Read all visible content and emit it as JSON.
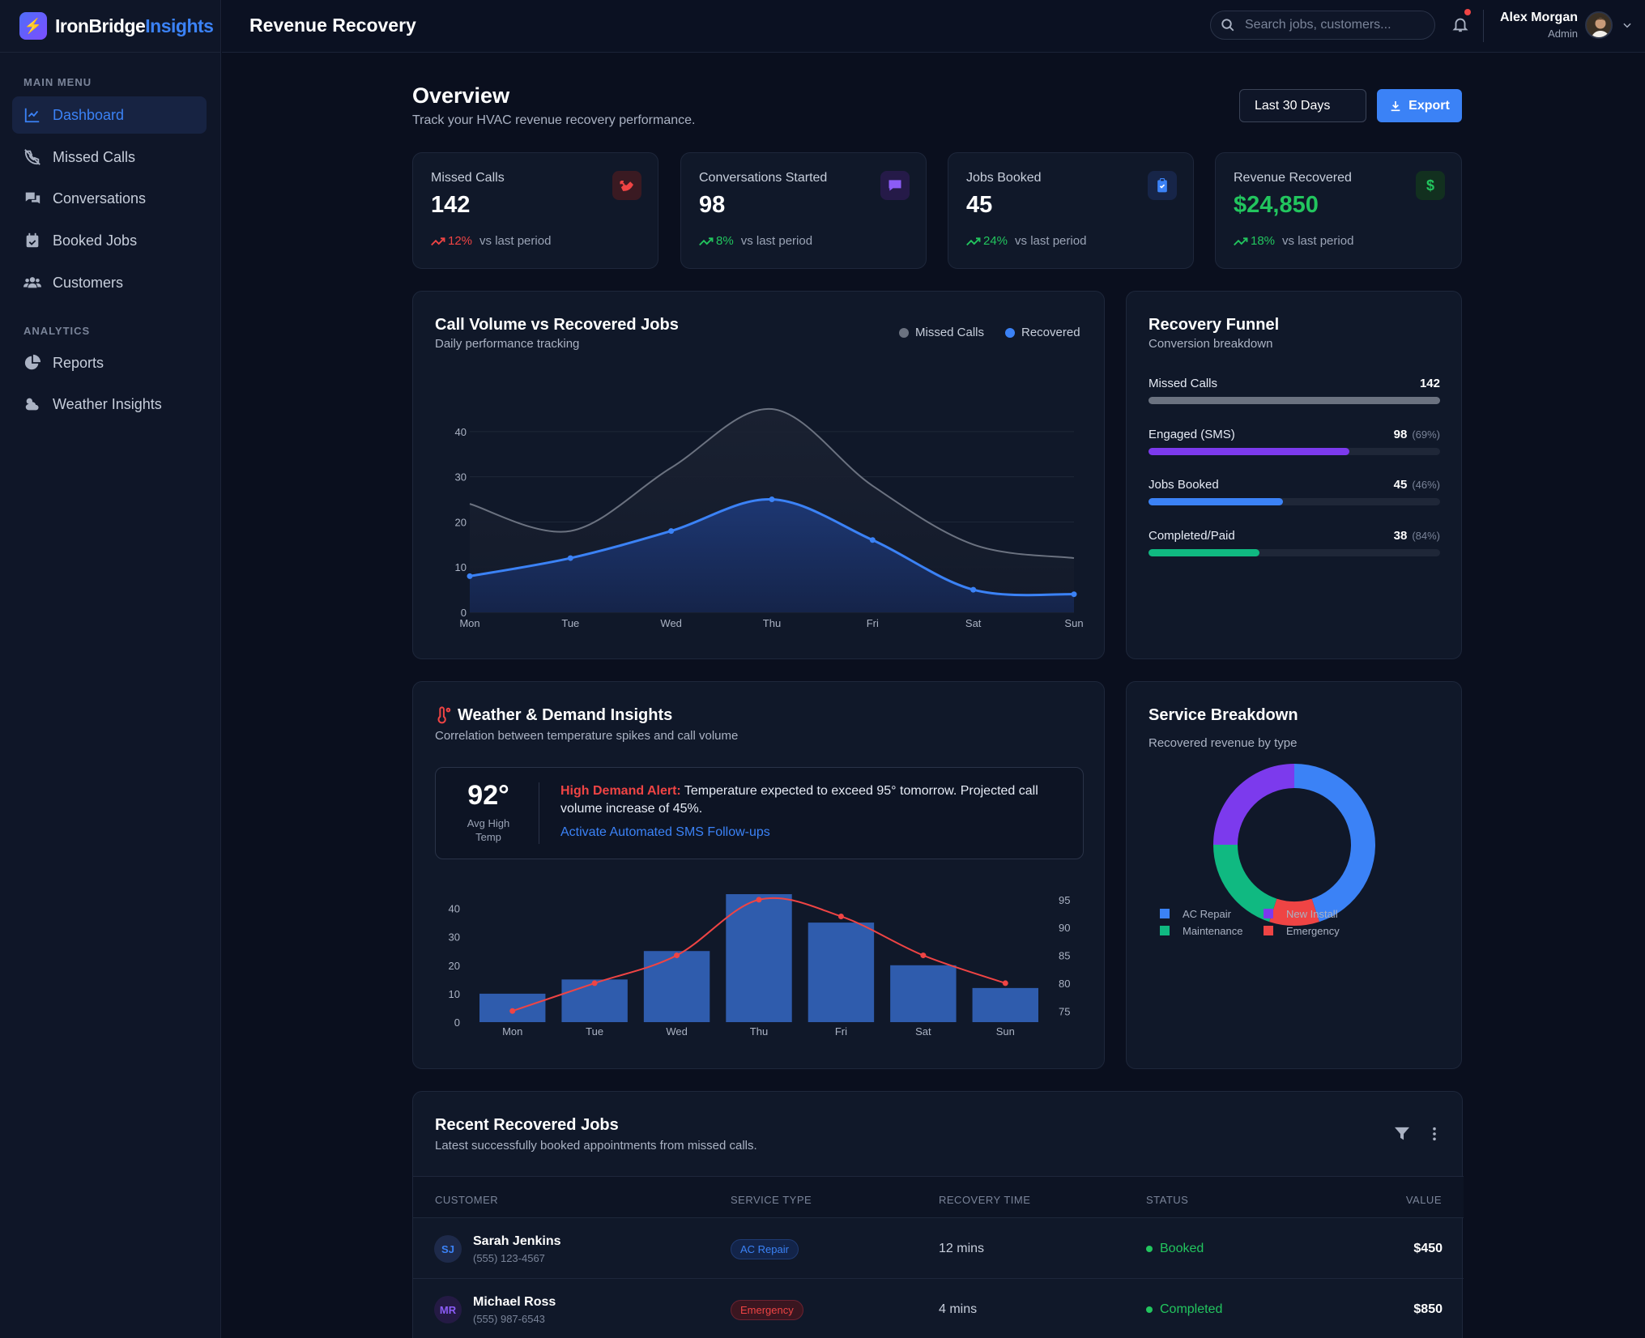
{
  "brand": {
    "name_main": "IronBridge",
    "name_accent": "Insights"
  },
  "topbar": {
    "title": "Revenue Recovery",
    "search_placeholder": "Search jobs, customers...",
    "user_name": "Alex Morgan",
    "user_role": "Admin"
  },
  "sidebar": {
    "main_menu_label": "MAIN MENU",
    "analytics_label": "ANALYTICS",
    "items": [
      {
        "label": "Dashboard",
        "icon": "chart-line-icon",
        "active": true
      },
      {
        "label": "Missed Calls",
        "icon": "phone-slash-icon"
      },
      {
        "label": "Conversations",
        "icon": "comments-icon"
      },
      {
        "label": "Booked Jobs",
        "icon": "calendar-check-icon"
      },
      {
        "label": "Customers",
        "icon": "users-icon"
      },
      {
        "label": "Reports",
        "icon": "pie-chart-icon"
      },
      {
        "label": "Weather Insights",
        "icon": "cloud-sun-icon"
      }
    ]
  },
  "overview": {
    "title": "Overview",
    "subtitle": "Track your HVAC revenue recovery performance.",
    "range_label": "Last 30 Days",
    "export_label": "Export"
  },
  "kpis": [
    {
      "label": "Missed Calls",
      "value": "142",
      "trend": "12%",
      "trend_suffix": "vs last period",
      "trend_color": "#ef4444",
      "icon": "phone-missed-icon",
      "icon_color": "#ef4444",
      "value_color": "#ffffff"
    },
    {
      "label": "Conversations Started",
      "value": "98",
      "trend": "8%",
      "trend_suffix": "vs last period",
      "trend_color": "#22c55e",
      "icon": "message-icon",
      "icon_color": "#8b5cf6",
      "value_color": "#ffffff"
    },
    {
      "label": "Jobs Booked",
      "value": "45",
      "trend": "24%",
      "trend_suffix": "vs last period",
      "trend_color": "#22c55e",
      "icon": "clipboard-check-icon",
      "icon_color": "#3b82f6",
      "value_color": "#ffffff"
    },
    {
      "label": "Revenue Recovered",
      "value": "$24,850",
      "trend": "18%",
      "trend_suffix": "vs last period",
      "trend_color": "#22c55e",
      "icon": "dollar-icon",
      "icon_color": "#22c55e",
      "value_color": "#22c55e"
    }
  ],
  "call_volume": {
    "title": "Call Volume vs Recovered Jobs",
    "subtitle": "Daily performance tracking",
    "legend_missed": "Missed Calls",
    "legend_recovered": "Recovered"
  },
  "funnel": {
    "title": "Recovery Funnel",
    "subtitle": "Conversion breakdown",
    "rows": [
      {
        "label": "Missed Calls",
        "value": "142",
        "pct": "",
        "fill": 1.0,
        "color": "#6b7280"
      },
      {
        "label": "Engaged (SMS)",
        "value": "98",
        "pct": "(69%)",
        "fill": 0.69,
        "color": "#7c3aed"
      },
      {
        "label": "Jobs Booked",
        "value": "45",
        "pct": "(46%)",
        "fill": 0.46,
        "color": "#3b82f6"
      },
      {
        "label": "Completed/Paid",
        "value": "38",
        "pct": "(84%)",
        "fill": 0.38,
        "color": "#10b981"
      }
    ]
  },
  "weather": {
    "title": "Weather & Demand Insights",
    "subtitle": "Correlation between temperature spikes and call volume",
    "temp": "92°",
    "temp_label": "Avg High Temp",
    "alert_title": "High Demand Alert:",
    "alert_body": "Temperature expected to exceed 95° tomorrow. Projected call volume increase of 45%.",
    "alert_action": "Activate Automated SMS Follow-ups"
  },
  "service": {
    "title": "Service Breakdown",
    "subtitle": "Recovered revenue by type"
  },
  "recent": {
    "title": "Recent Recovered Jobs",
    "subtitle": "Latest successfully booked appointments from missed calls.",
    "columns": [
      "CUSTOMER",
      "SERVICE TYPE",
      "RECOVERY TIME",
      "STATUS",
      "VALUE"
    ],
    "rows": [
      {
        "initials": "SJ",
        "name": "Sarah Jenkins",
        "phone": "(555) 123-4567",
        "service": "AC Repair",
        "service_color": "#3b82f6",
        "time": "12 mins",
        "status": "Booked",
        "value": "$450"
      },
      {
        "initials": "MR",
        "name": "Michael Ross",
        "phone": "(555) 987-6543",
        "service": "Emergency",
        "service_color": "#ef4444",
        "time": "4 mins",
        "status": "Completed",
        "value": "$850"
      }
    ]
  },
  "chart_data": [
    {
      "type": "area",
      "categories": [
        "Mon",
        "Tue",
        "Wed",
        "Thu",
        "Fri",
        "Sat",
        "Sun"
      ],
      "series": [
        {
          "name": "Missed Calls",
          "values": [
            24,
            18,
            32,
            45,
            28,
            15,
            12
          ],
          "color": "#6b7280"
        },
        {
          "name": "Recovered",
          "values": [
            8,
            12,
            18,
            25,
            16,
            5,
            4
          ],
          "color": "#3b82f6"
        }
      ],
      "ylim": [
        0,
        45
      ],
      "yticks": [
        0,
        10,
        20,
        30,
        40
      ],
      "grid": true,
      "legend": "top-right"
    },
    {
      "type": "bar",
      "categories": [
        "Mon",
        "Tue",
        "Wed",
        "Thu",
        "Fri",
        "Sat",
        "Sun"
      ],
      "series": [
        {
          "values": [
            10,
            15,
            25,
            45,
            35,
            20,
            12
          ],
          "color": "#2f5cad",
          "axis": "left"
        },
        {
          "values": [
            75,
            80,
            85,
            95,
            92,
            85,
            80
          ],
          "color": "#ef4444",
          "axis": "right",
          "kind": "line"
        }
      ],
      "ylim_left": [
        0,
        45
      ],
      "yticks_left": [
        0,
        10,
        20,
        30,
        40
      ],
      "ylim_right": [
        73,
        96
      ],
      "yticks_right": [
        75,
        80,
        85,
        90,
        95
      ]
    },
    {
      "type": "pie",
      "donut": true,
      "slices": [
        {
          "label": "AC Repair",
          "value": 45,
          "color": "#3b82f6"
        },
        {
          "label": "Emergency",
          "value": 10,
          "color": "#ef4444"
        },
        {
          "label": "Maintenance",
          "value": 20,
          "color": "#10b981"
        },
        {
          "label": "New Install",
          "value": 25,
          "color": "#7c3aed"
        }
      ]
    }
  ]
}
